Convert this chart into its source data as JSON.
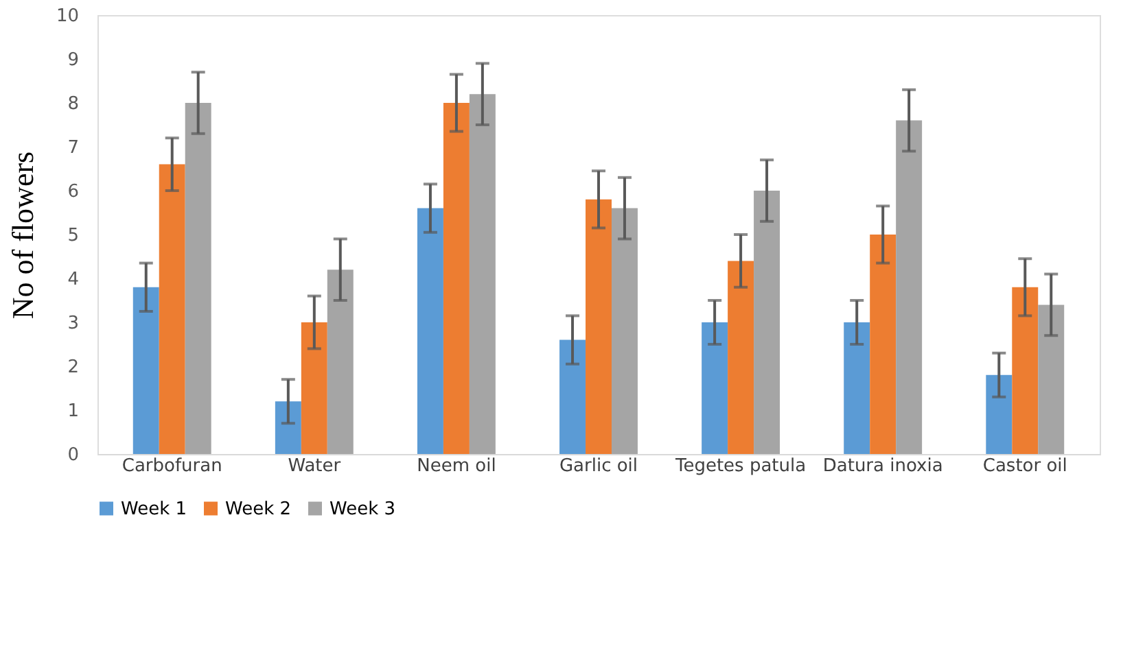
{
  "chart_data": {
    "type": "bar",
    "ylabel": "No of flowers",
    "categories": [
      "Carbofuran",
      "Water",
      "Neem oil",
      "Garlic oil",
      "Tegetes patula",
      "Datura inoxia",
      "Castor oil"
    ],
    "series": [
      {
        "name": "Week 1",
        "color": "#5b9bd5",
        "values": [
          3.8,
          1.2,
          5.6,
          2.6,
          3.0,
          3.0,
          1.8
        ],
        "errors": [
          0.55,
          0.5,
          0.55,
          0.55,
          0.5,
          0.5,
          0.5
        ]
      },
      {
        "name": "Week 2",
        "color": "#ed7d31",
        "values": [
          6.6,
          3.0,
          8.0,
          5.8,
          4.4,
          5.0,
          3.8
        ],
        "errors": [
          0.6,
          0.6,
          0.65,
          0.65,
          0.6,
          0.65,
          0.65
        ]
      },
      {
        "name": "Week 3",
        "color": "#a5a5a5",
        "values": [
          8.0,
          4.2,
          8.2,
          5.6,
          6.0,
          7.6,
          3.4
        ],
        "errors": [
          0.7,
          0.7,
          0.7,
          0.7,
          0.7,
          0.7,
          0.7
        ]
      }
    ],
    "ylim": [
      0,
      10
    ],
    "yticks": [
      0,
      1,
      2,
      3,
      4,
      5,
      6,
      7,
      8,
      9,
      10
    ],
    "grid": false,
    "legend": "bottom"
  }
}
